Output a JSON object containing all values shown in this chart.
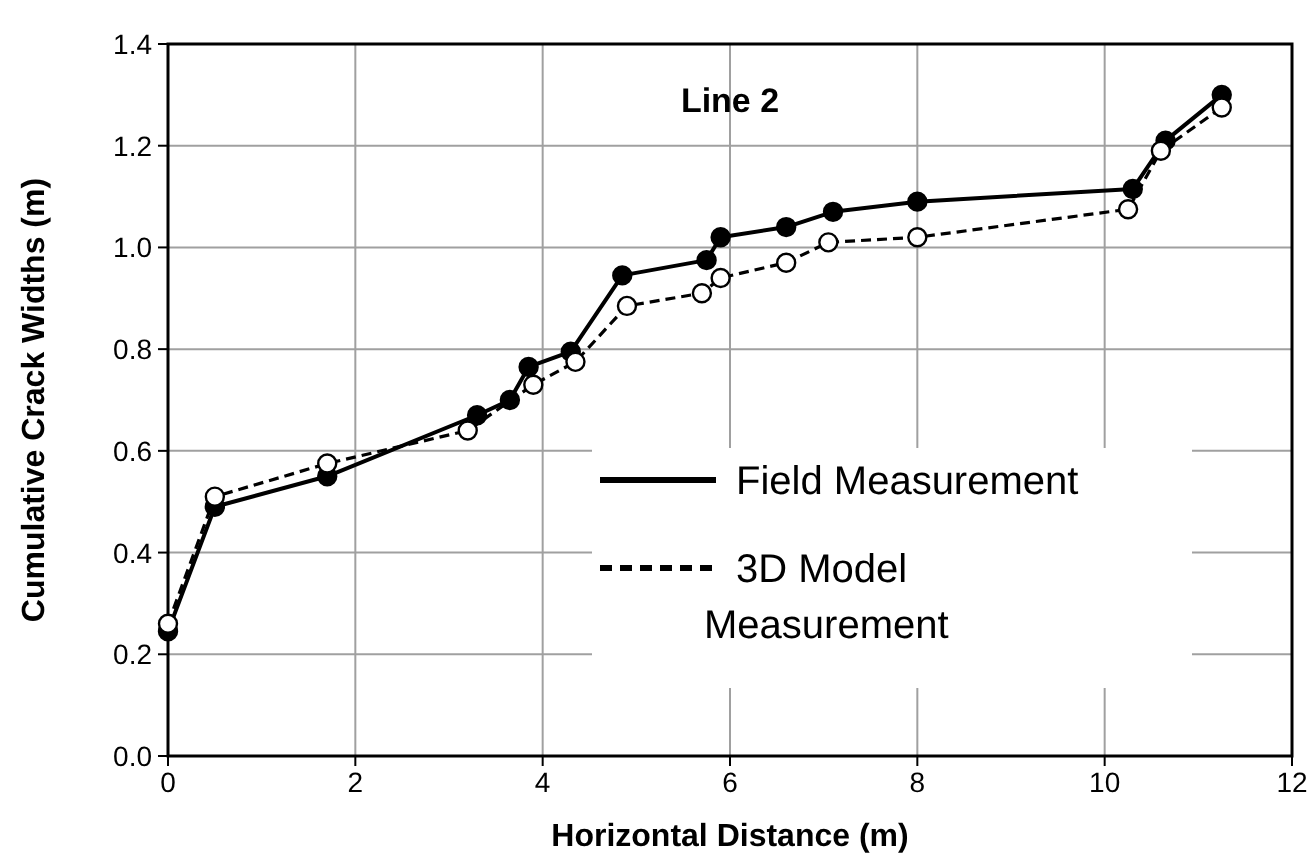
{
  "chart_data": {
    "type": "line",
    "title": "Line 2",
    "xlabel": "Horizontal Distance (m)",
    "ylabel": "Cumulative Crack Widths (m)",
    "xlim": [
      0,
      12
    ],
    "xticks": [
      0,
      2,
      4,
      6,
      8,
      10,
      12
    ],
    "ylim": [
      0,
      1.4
    ],
    "yticks": [
      {
        "value": 0,
        "label": "0.0"
      },
      {
        "value": 0.2,
        "label": "0.2"
      },
      {
        "value": 0.4,
        "label": "0.4"
      },
      {
        "value": 0.6,
        "label": "0.6"
      },
      {
        "value": 0.8,
        "label": "0.8"
      },
      {
        "value": 1,
        "label": "1.0"
      },
      {
        "value": 1.2,
        "label": "1.2"
      },
      {
        "value": 1.4,
        "label": "1.4"
      }
    ],
    "grid": true,
    "legend": "right",
    "marker": "circle",
    "series": [
      {
        "name": "Field Measurement",
        "color": "#000000",
        "line_style": "solid",
        "x": [
          0,
          0.5,
          1.7,
          3.3,
          3.65,
          3.85,
          4.3,
          4.85,
          5.75,
          5.9,
          6.6,
          7.1,
          8.0,
          10.3,
          10.65,
          11.25
        ],
        "values": [
          0.245,
          0.49,
          0.55,
          0.67,
          0.7,
          0.765,
          0.795,
          0.945,
          0.975,
          1.02,
          1.04,
          1.07,
          1.09,
          1.115,
          1.21,
          1.3
        ]
      },
      {
        "name": "3D Model Measurement",
        "color": "#000000",
        "line_style": "dashed",
        "x": [
          0,
          0.5,
          1.7,
          3.2,
          3.9,
          4.35,
          4.9,
          5.7,
          5.9,
          6.6,
          7.05,
          8.0,
          10.25,
          10.6,
          11.25
        ],
        "values": [
          0.26,
          0.51,
          0.575,
          0.64,
          0.73,
          0.775,
          0.885,
          0.91,
          0.94,
          0.97,
          1.01,
          1.02,
          1.075,
          1.19,
          1.275
        ]
      }
    ]
  }
}
